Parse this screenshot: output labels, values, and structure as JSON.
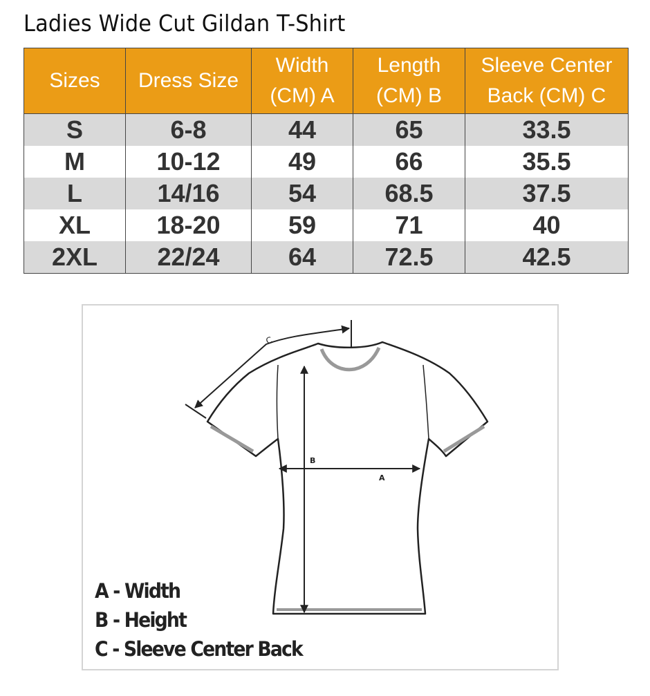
{
  "title": "Ladies Wide Cut Gildan T-Shirt",
  "table": {
    "header_color": "#eb9c16",
    "headers": [
      "Sizes",
      "Dress Size",
      "Width (CM) A",
      "Length (CM) B",
      "Sleeve Center Back (CM) C"
    ],
    "header_lines": [
      [
        "Sizes"
      ],
      [
        "Dress Size"
      ],
      [
        "Width",
        "(CM) A"
      ],
      [
        "Length",
        "(CM) B"
      ],
      [
        "Sleeve Center",
        "Back (CM) C"
      ]
    ],
    "rows": [
      [
        "S",
        "6-8",
        "44",
        "65",
        "33.5"
      ],
      [
        "M",
        "10-12",
        "49",
        "66",
        "35.5"
      ],
      [
        "L",
        "14/16",
        "54",
        "68.5",
        "37.5"
      ],
      [
        "XL",
        "18-20",
        "59",
        "71",
        "40"
      ],
      [
        "2XL",
        "22/24",
        "64",
        "72.5",
        "42.5"
      ]
    ]
  },
  "diagram": {
    "labels": {
      "a": "A",
      "b": "B",
      "c": "C"
    },
    "legend": [
      "A - Width",
      "B - Height",
      "C - Sleeve Center Back"
    ]
  }
}
